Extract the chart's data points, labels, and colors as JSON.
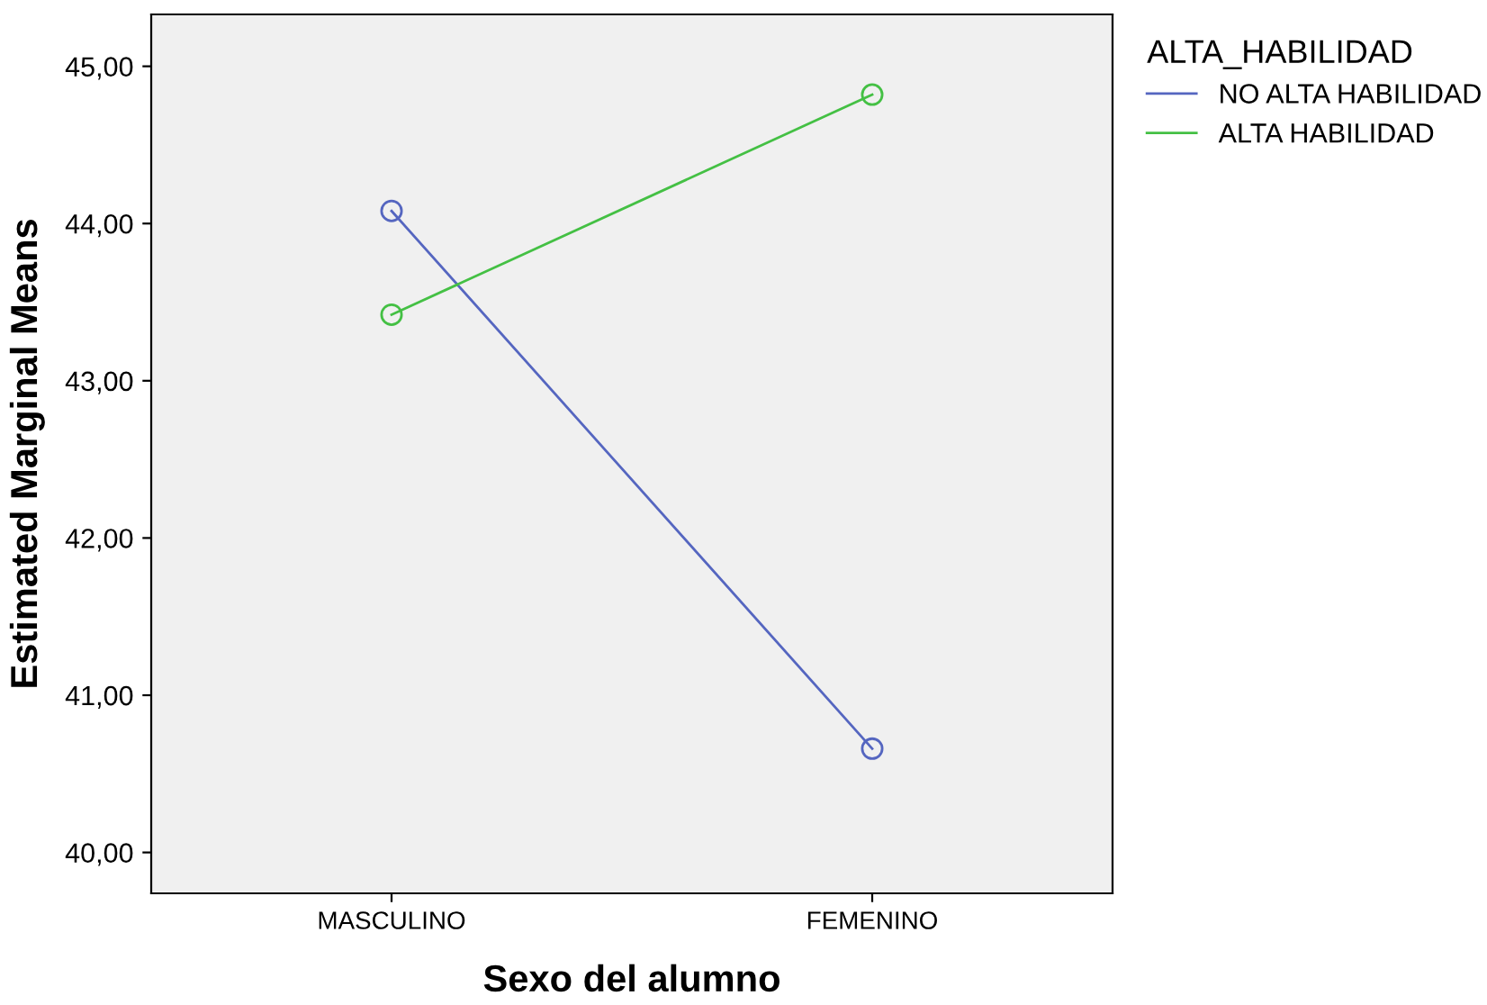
{
  "chart_data": {
    "type": "line",
    "xlabel": "Sexo del alumno",
    "ylabel": "Estimated Marginal Means",
    "legend_title": "ALTA_HABILIDAD",
    "categories": [
      "MASCULINO",
      "FEMENINO"
    ],
    "series": [
      {
        "name": "NO ALTA HABILIDAD",
        "color": "#5566c0",
        "values": [
          44.08,
          40.66
        ]
      },
      {
        "name": "ALTA HABILIDAD",
        "color": "#44c044",
        "values": [
          43.42,
          44.82
        ]
      }
    ],
    "ylim": [
      39.74,
      45.33
    ],
    "yticks": [
      {
        "value": 40,
        "label": "40,00"
      },
      {
        "value": 41,
        "label": "41,00"
      },
      {
        "value": 42,
        "label": "42,00"
      },
      {
        "value": 43,
        "label": "43,00"
      },
      {
        "value": 44,
        "label": "44,00"
      },
      {
        "value": 45,
        "label": "45,00"
      }
    ],
    "marker": "circle",
    "line_style": "solid",
    "grid": false,
    "legend": "top right"
  }
}
